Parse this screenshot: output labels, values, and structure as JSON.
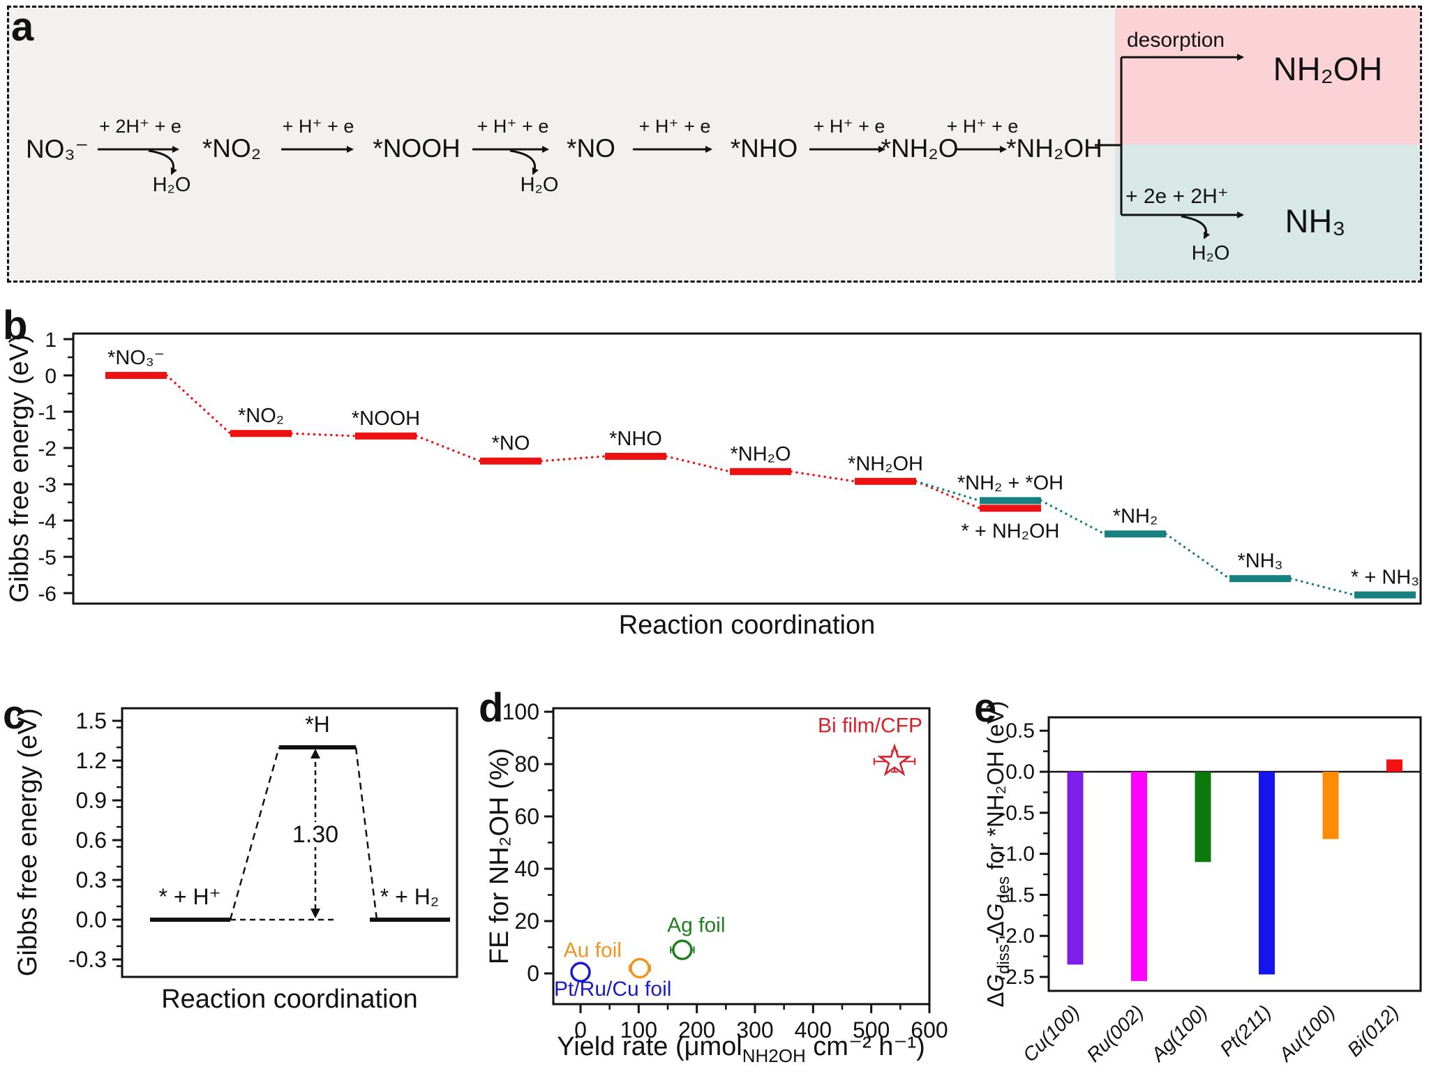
{
  "figure": {
    "panel_labels": [
      "a",
      "b",
      "c",
      "d",
      "e"
    ]
  },
  "panel_a": {
    "background": "#f2f1ef",
    "pink_region_color": "#fbd3d7",
    "teal_region_color": "#d8e8e5",
    "species": [
      "NO₃⁻",
      "*NO₂",
      "*NOOH",
      "*NO",
      "*NHO",
      "*NH₂O",
      "*NH₂OH"
    ],
    "arrow_labels": [
      "+ 2H⁺ + e",
      "+ H⁺ + e",
      "+ H⁺ + e",
      "+ H⁺ + e",
      "+ H⁺ + e",
      "+ H⁺ + e"
    ],
    "byproducts": [
      "H₂O",
      "H₂O",
      "H₂O"
    ],
    "branch_top": {
      "label": "desorption",
      "product": "NH₂OH"
    },
    "branch_bottom": {
      "label": "+ 2e + 2H⁺",
      "product": "NH₃"
    }
  },
  "chart_data": [
    {
      "panel": "b",
      "type": "step-energy",
      "xlabel": "Reaction coordination",
      "ylabel": "Gibbs free energy (eV)",
      "yticks": [
        1,
        0,
        -1,
        -2,
        -3,
        -4,
        -5,
        -6
      ],
      "ylim": [
        1.15,
        -6.45
      ],
      "grid": false,
      "colors": {
        "red": "#ee1111",
        "teal": "#178080"
      },
      "steps": [
        {
          "label": "*NO₃⁻",
          "value": 0.0,
          "color": "red",
          "slot": 1
        },
        {
          "label": "*NO₂",
          "value": -1.6,
          "color": "red",
          "slot": 2
        },
        {
          "label": "*NOOH",
          "value": -1.67,
          "color": "red",
          "slot": 3
        },
        {
          "label": "*NO",
          "value": -2.36,
          "color": "red",
          "slot": 4
        },
        {
          "label": "*NHO",
          "value": -2.23,
          "color": "red",
          "slot": 5
        },
        {
          "label": "*NH₂O",
          "value": -2.65,
          "color": "red",
          "slot": 6
        },
        {
          "label": "*NH₂OH",
          "value": -2.92,
          "color": "red",
          "slot": 7
        },
        {
          "label": "*NH₂ + *OH",
          "value": -3.45,
          "color": "teal",
          "slot": 8,
          "label_side": "above"
        },
        {
          "label": "* + NH₂OH",
          "value": -3.66,
          "color": "red",
          "slot": 8,
          "label_side": "below"
        },
        {
          "label": "*NH₂",
          "value": -4.37,
          "color": "teal",
          "slot": 9
        },
        {
          "label": "*NH₃",
          "value": -5.6,
          "color": "teal",
          "slot": 10
        },
        {
          "label": "* + NH₃",
          "value": -6.05,
          "color": "teal",
          "slot": 11
        }
      ],
      "connectors": [
        {
          "from": 0,
          "to": 1,
          "color": "red"
        },
        {
          "from": 1,
          "to": 2,
          "color": "red"
        },
        {
          "from": 2,
          "to": 3,
          "color": "red"
        },
        {
          "from": 3,
          "to": 4,
          "color": "red"
        },
        {
          "from": 4,
          "to": 5,
          "color": "red"
        },
        {
          "from": 5,
          "to": 6,
          "color": "red"
        },
        {
          "from": 6,
          "to": 8,
          "color": "red"
        },
        {
          "from": 6,
          "to": 7,
          "color": "teal"
        },
        {
          "from": 7,
          "to": 9,
          "color": "teal"
        },
        {
          "from": 9,
          "to": 10,
          "color": "teal"
        },
        {
          "from": 10,
          "to": 11,
          "color": "teal"
        }
      ]
    },
    {
      "panel": "c",
      "type": "step-energy",
      "xlabel": "Reaction coordination",
      "ylabel": "Gibbs free energy (eV)",
      "yticks": [
        "1.5",
        "1.2",
        "0.9",
        "0.6",
        "0.3",
        "0.0",
        "-0.3"
      ],
      "ylim": [
        1.59,
        -0.43
      ],
      "levels": [
        {
          "label": "* + H⁺",
          "value": 0.0
        },
        {
          "label": "*H",
          "value": 1.3
        },
        {
          "label": "* + H₂",
          "value": 0.0
        }
      ],
      "barrier_annotation": "1.30"
    },
    {
      "panel": "d",
      "type": "scatter",
      "xlabel_parts": [
        "Yield rate (μmol",
        "NH2OH",
        " cm⁻² h⁻¹)"
      ],
      "ylabel": "FE for NH₂OH (%)",
      "xticks": [
        0,
        100,
        200,
        300,
        400,
        500,
        600
      ],
      "yticks": [
        0,
        20,
        40,
        60,
        80,
        100
      ],
      "xlim": [
        -47,
        600
      ],
      "ylim": [
        -11.7,
        101.3
      ],
      "points": [
        {
          "label": "Pt/Ru/Cu foil",
          "x": 0,
          "y": 0.5,
          "xerr": 0,
          "yerr": 0,
          "color": "#1a1acd",
          "marker": "circle"
        },
        {
          "label": "Au foil",
          "x": 102,
          "y": 2,
          "xerr": 18,
          "yerr": 2,
          "color": "#f0941e",
          "marker": "circle"
        },
        {
          "label": "Ag foil",
          "x": 175,
          "y": 9,
          "xerr": 20,
          "yerr": 2,
          "color": "#1f7f1f",
          "marker": "circle"
        },
        {
          "label": "Bi film/CFP",
          "x": 540,
          "y": 81,
          "xerr": 35,
          "yerr": 4,
          "color": "#d9202a",
          "marker": "star"
        }
      ]
    },
    {
      "panel": "e",
      "type": "bar",
      "ylabel_parts": [
        {
          "t": "Δ"
        },
        {
          "t": "G",
          "italic": true
        },
        {
          "t": "diss",
          "sub": true
        },
        {
          "t": "-Δ"
        },
        {
          "t": "G",
          "italic": true
        },
        {
          "t": "des",
          "sub": true
        },
        {
          "t": " for *NH₂OH (eV)"
        }
      ],
      "categories": [
        "Cu(100)",
        "Ru(002)",
        "Ag(100)",
        "Pt(211)",
        "Au(100)",
        "Bi(012)"
      ],
      "values": [
        -2.35,
        -2.55,
        -1.1,
        -2.47,
        -0.82,
        0.15
      ],
      "colors": [
        "#7d1fe8",
        "#ff00ff",
        "#0d790d",
        "#1414ef",
        "#ff8c05",
        "#f21212"
      ],
      "yticks": [
        "0.5",
        "0.0",
        "-0.5",
        "-1.0",
        "-1.5",
        "-2.0",
        "-2.5"
      ],
      "ylim": [
        0.66,
        -2.73
      ]
    }
  ]
}
